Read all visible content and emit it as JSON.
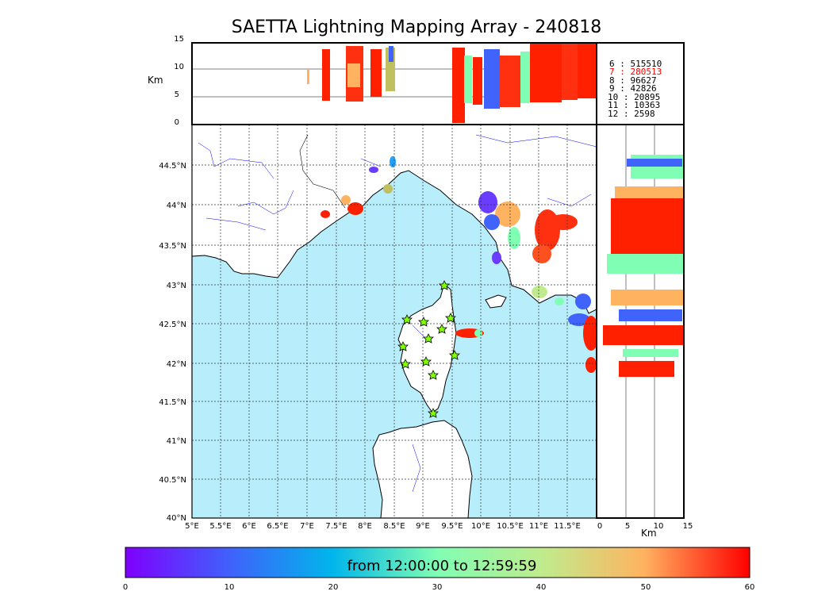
{
  "title": "SAETTA Lightning Mapping Array - 240818",
  "top_panel": {
    "ylabel": "Km",
    "yticks": [
      "0",
      "5",
      "10",
      "15"
    ]
  },
  "right_panel": {
    "xlabel": "Km",
    "xticks": [
      "0",
      "5",
      "10",
      "15"
    ]
  },
  "map": {
    "lon_ticks": [
      "5°E",
      "5.5°E",
      "6°E",
      "6.5°E",
      "7°E",
      "7.5°E",
      "8°E",
      "8.5°E",
      "9°E",
      "9.5°E",
      "10°E",
      "10.5°E",
      "11°E",
      "11.5°E"
    ],
    "lat_ticks": [
      "40°N",
      "40.5°N",
      "41°N",
      "41.5°N",
      "42°N",
      "42.5°N",
      "43°N",
      "43.5°N",
      "44°N",
      "44.5°N"
    ],
    "sea_color": "#b8eefb",
    "land_color": "#ffffff",
    "station_color": "#7fff00",
    "station_icon": "star-icon"
  },
  "legend": [
    {
      "stations": "6",
      "count": "515510",
      "color": "#000000"
    },
    {
      "stations": "7",
      "count": "280513",
      "color": "#ff0000"
    },
    {
      "stations": "8",
      "count": "96627",
      "color": "#000000"
    },
    {
      "stations": "9",
      "count": "42826",
      "color": "#000000"
    },
    {
      "stations": "10",
      "count": "20895",
      "color": "#000000"
    },
    {
      "stations": "11",
      "count": "10363",
      "color": "#000000"
    },
    {
      "stations": "12",
      "count": "2598",
      "color": "#000000"
    }
  ],
  "colorbar": {
    "label": "from 12:00:00 to 12:59:59",
    "ticks": [
      "0",
      "10",
      "20",
      "30",
      "40",
      "50",
      "60"
    ],
    "colormap": "rainbow"
  }
}
